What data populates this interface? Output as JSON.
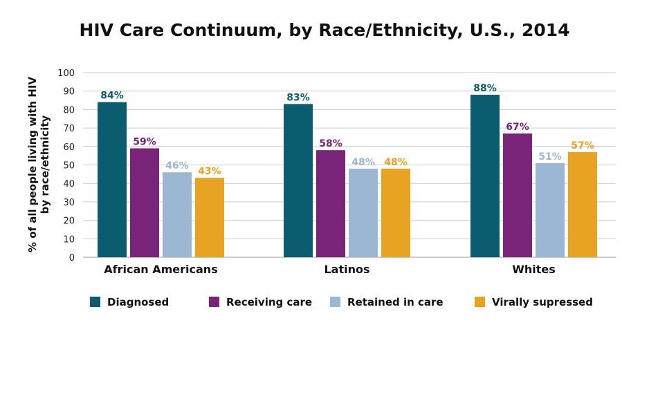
{
  "chart_data": {
    "type": "bar",
    "title": "HIV Care Continuum, by Race/Ethnicity, U.S., 2014",
    "ylabel_line1": "% of all people living with HIV",
    "ylabel_line2": "by race/ethnicity",
    "xlabel": "",
    "ylim": [
      0,
      100
    ],
    "yticks": [
      0,
      10,
      20,
      30,
      40,
      50,
      60,
      70,
      80,
      90,
      100
    ],
    "grid": true,
    "legend_position": "bottom",
    "categories": [
      "African Americans",
      "Latinos",
      "Whites"
    ],
    "series": [
      {
        "name": "Diagnosed",
        "color": "#0a5c6e",
        "values": [
          84,
          83,
          88
        ],
        "labels": [
          "84%",
          "83%",
          "88%"
        ]
      },
      {
        "name": "Receiving care",
        "color": "#792479",
        "values": [
          59,
          58,
          67
        ],
        "labels": [
          "59%",
          "58%",
          "67%"
        ]
      },
      {
        "name": "Retained in care",
        "color": "#9bb7d4",
        "values": [
          46,
          48,
          51
        ],
        "labels": [
          "46%",
          "48%",
          "51%"
        ]
      },
      {
        "name": "Virally supressed",
        "color": "#e9a323",
        "values": [
          43,
          48,
          57
        ],
        "labels": [
          "43%",
          "48%",
          "57%"
        ]
      }
    ]
  }
}
